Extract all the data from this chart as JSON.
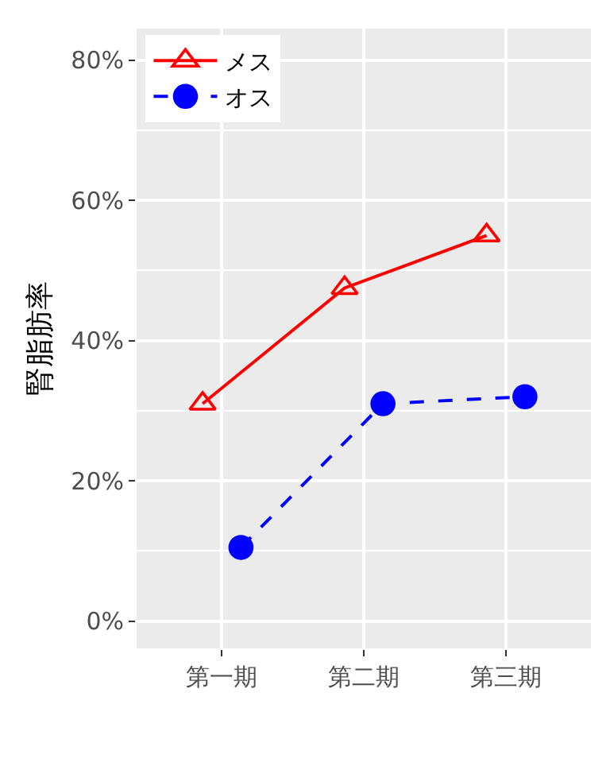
{
  "chart_data": {
    "type": "line",
    "ylabel": "腎脂肪率",
    "categories": [
      "第一期",
      "第二期",
      "第三期"
    ],
    "series": [
      {
        "name": "メス",
        "color": "#ff0000",
        "values": [
          31,
          47.5,
          55
        ],
        "marker": "triangle",
        "line_style": "solid"
      },
      {
        "name": "オス",
        "color": "#0000ff",
        "values": [
          10.5,
          31,
          32
        ],
        "marker": "circle",
        "line_style": "dashed"
      }
    ],
    "ylim": [
      -3.9,
      84.5
    ],
    "yticks": [
      {
        "value": 0,
        "label": "0%"
      },
      {
        "value": 20,
        "label": "20%"
      },
      {
        "value": 40,
        "label": "40%"
      },
      {
        "value": 60,
        "label": "60%"
      },
      {
        "value": 80,
        "label": "80%"
      }
    ],
    "grid": true,
    "legend": "top left"
  }
}
